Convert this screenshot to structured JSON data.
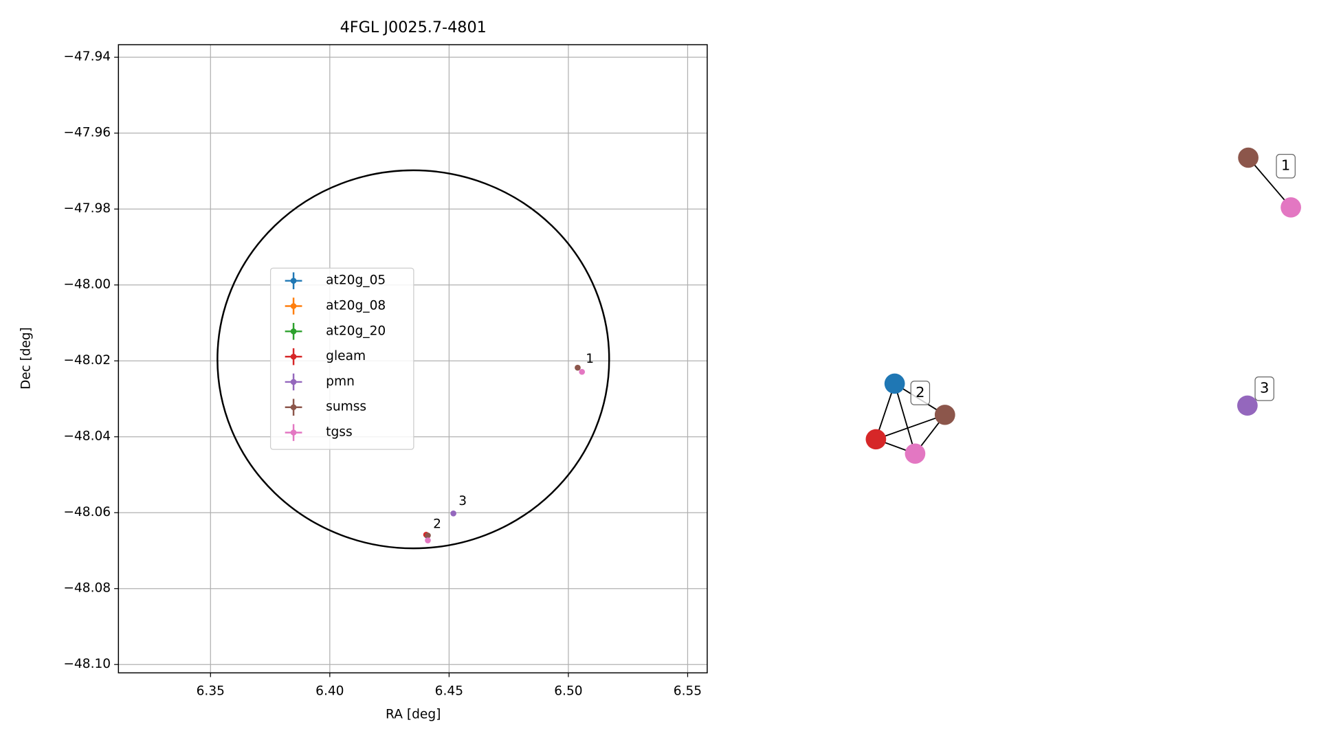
{
  "chart_data": [
    {
      "type": "scatter",
      "title": "4FGL J0025.7-4801",
      "xlabel": "RA [deg]",
      "ylabel": "Dec [deg]",
      "xlim": [
        6.3114,
        6.5582
      ],
      "ylim": [
        -48.1022,
        -47.9367
      ],
      "xticks": [
        6.35,
        {
          "value": 6.4,
          "label": "6.40"
        },
        6.45,
        {
          "value": 6.5,
          "label": "6.50"
        },
        6.55
      ],
      "yticks": [
        {
          "value": -48.1,
          "label": "−48.10"
        },
        {
          "value": -48.08,
          "label": "−48.08"
        },
        {
          "value": -48.06,
          "label": "−48.06"
        },
        {
          "value": -48.04,
          "label": "−48.04"
        },
        {
          "value": -48.02,
          "label": "−48.02"
        },
        {
          "value": -48.0,
          "label": "−48.00"
        },
        {
          "value": -47.98,
          "label": "−47.98"
        },
        {
          "value": -47.96,
          "label": "−47.96"
        },
        {
          "value": -47.94,
          "label": "−47.94"
        }
      ],
      "grid": true,
      "legend": "center",
      "ellipse": {
        "center": [
          6.435,
          -48.0196
        ],
        "ra_radius": 0.0821,
        "dec_radius": 0.0498,
        "color": "#000000"
      },
      "series": [
        {
          "name": "at20g_05",
          "color": "#1f77b4",
          "x": [
            6.4407
          ],
          "y": [
            -48.066
          ]
        },
        {
          "name": "at20g_08",
          "color": "#ff7f0e",
          "x": [],
          "y": []
        },
        {
          "name": "at20g_20",
          "color": "#2ca02c",
          "x": [],
          "y": []
        },
        {
          "name": "gleam",
          "color": "#d62728",
          "x": [
            6.4404
          ],
          "y": [
            -48.0658
          ]
        },
        {
          "name": "pmn",
          "color": "#9467bd",
          "x": [
            6.4518
          ],
          "y": [
            -48.0602
          ]
        },
        {
          "name": "sumss",
          "color": "#8c564b",
          "x": [
            6.5039,
            6.4411
          ],
          "y": [
            -48.0218,
            -48.066
          ]
        },
        {
          "name": "tgss",
          "color": "#e377c2",
          "x": [
            6.5057,
            6.4411
          ],
          "y": [
            -48.0229,
            -48.0673
          ]
        }
      ],
      "annotations": [
        {
          "text": "1",
          "x": 6.509,
          "y": -48.0196
        },
        {
          "text": "2",
          "x": 6.445,
          "y": -48.0631
        },
        {
          "text": "3",
          "x": 6.4557,
          "y": -48.0571
        }
      ]
    },
    {
      "type": "network",
      "nodes": [
        {
          "color": "#8c564b",
          "group": 0
        },
        {
          "color": "#e377c2",
          "group": 0
        },
        {
          "color": "#9467bd",
          "group": 2
        },
        {
          "color": "#1f77b4",
          "group": 1
        },
        {
          "color": "#8c564b",
          "group": 1
        },
        {
          "color": "#d62728",
          "group": 1
        },
        {
          "color": "#e377c2",
          "group": 1
        }
      ],
      "edges": [
        [
          0,
          1
        ],
        [
          3,
          4
        ],
        [
          3,
          5
        ],
        [
          3,
          6
        ],
        [
          5,
          4
        ],
        [
          5,
          6
        ],
        [
          4,
          6
        ]
      ],
      "groups": [
        "1",
        "2",
        "3"
      ]
    }
  ]
}
